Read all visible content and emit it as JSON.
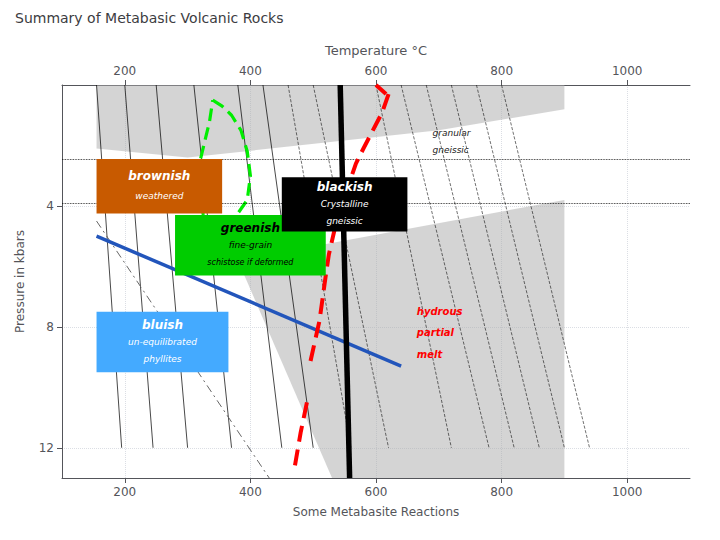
{
  "chart_data": {
    "type": "line",
    "title": "Summary of Metabasic Volcanic Rocks",
    "xlabel": "Some Metabasite Reactions",
    "x2label": "Temperature °C",
    "ylabel": "Pressure in kbars",
    "xlim": [
      100,
      1100
    ],
    "xticks": [
      200,
      400,
      600,
      800,
      1000
    ],
    "ylim": [
      13.0,
      0.0
    ],
    "yticks": [
      4,
      8,
      12
    ],
    "grid": true,
    "series": [
      {
        "type": "area",
        "color": "#aaaaaa",
        "x": [
          155,
          155,
          300,
          700,
          900,
          900,
          440
        ],
        "y": [
          0.0,
          2.1,
          2.4,
          1.5,
          0.8,
          0.0,
          0.0
        ]
      },
      {
        "type": "area",
        "color": "#aaaaaa",
        "x": [
          380,
          900,
          900,
          530,
          380
        ],
        "y": [
          5.8,
          3.8,
          13.0,
          13.0,
          5.8
        ]
      },
      {
        "type": "line",
        "color": "#000000",
        "line_style": "solid",
        "x": [
          155,
          195,
          null,
          200,
          245,
          null,
          250,
          300,
          null,
          310,
          370,
          null,
          380,
          450,
          null,
          420,
          500
        ],
        "y": [
          0.0,
          12.0,
          null,
          0.0,
          12.0,
          null,
          0.0,
          12.0,
          null,
          0.0,
          12.0,
          null,
          0.0,
          12.0,
          null,
          0.0,
          12.0
        ]
      },
      {
        "type": "line",
        "color": "#000000",
        "line_style": "dashed",
        "x": [
          460,
          560,
          null,
          500,
          620,
          null,
          600,
          720,
          null,
          640,
          780,
          null,
          680,
          820,
          null,
          720,
          860,
          null,
          760,
          900,
          null,
          800,
          940
        ],
        "y": [
          0.0,
          12.0,
          null,
          0.0,
          12.0,
          null,
          0.0,
          12.0,
          null,
          0.0,
          12.0,
          null,
          0.0,
          12.0,
          null,
          0.0,
          12.0,
          null,
          0.0,
          12.0,
          null,
          0.0,
          12.0
        ]
      },
      {
        "type": "line",
        "color": "#666666",
        "line_style": "dashdot",
        "x": [
          155,
          430
        ],
        "y": [
          4.5,
          13.0
        ]
      },
      {
        "type": "line",
        "color": "#000000",
        "line_style": "solid",
        "x": [
          543,
          558
        ],
        "y": [
          0.0,
          13.0
        ]
      },
      {
        "type": "line",
        "color": "#2255bb",
        "line_style": "solid",
        "x": [
          155,
          640
        ],
        "y": [
          5.0,
          9.3
        ]
      },
      {
        "type": "line",
        "color": "#00ee00",
        "line_style": "dashed",
        "x": [
          340,
          355,
          370,
          385,
          395,
          400,
          395,
          375,
          345,
          325,
          318,
          320,
          335,
          340
        ],
        "y": [
          0.5,
          0.7,
          1.0,
          1.5,
          2.2,
          3.0,
          3.8,
          4.4,
          4.7,
          4.3,
          3.5,
          2.5,
          1.2,
          0.5
        ]
      },
      {
        "type": "line",
        "color": "#ff0000",
        "line_style": "dashed",
        "x": [
          620,
          610,
          595,
          580,
          568,
          558,
          548,
          535,
          525,
          520,
          510,
          495
        ],
        "y": [
          0.3,
          0.9,
          1.5,
          2.1,
          2.6,
          3.2,
          3.8,
          4.7,
          5.6,
          6.3,
          7.8,
          9.2
        ]
      },
      {
        "type": "line",
        "color": "#ff0000",
        "line_style": "solid",
        "x": [
          600,
          608,
          616
        ],
        "y": [
          0.0,
          0.15,
          0.3
        ]
      },
      {
        "type": "line",
        "color": "#ff0000",
        "line_style": "dashed",
        "x": [
          490,
          480,
          470
        ],
        "y": [
          10.5,
          11.5,
          12.7
        ]
      },
      {
        "type": "hline",
        "color": "#000000",
        "line_style": "dotted",
        "y": [
          2.45,
          3.9
        ]
      }
    ],
    "boxes": [
      {
        "x0": 155,
        "y0": 2.45,
        "x1": 355,
        "y1": 4.25,
        "color": "#c85a00",
        "text_color": "#ffffff",
        "texts": [
          "brownish",
          "weathered"
        ]
      },
      {
        "x0": 280,
        "y0": 4.3,
        "x1": 520,
        "y1": 6.3,
        "color": "#00cc00",
        "text_color": "#000000",
        "texts": [
          "greenish",
          "fine-grain",
          "schistose if deformed"
        ]
      },
      {
        "x0": 450,
        "y0": 3.05,
        "x1": 650,
        "y1": 4.85,
        "color": "#000000",
        "text_color": "#ffffff",
        "texts": [
          "blackish",
          "Crystalline",
          "gneissic"
        ]
      },
      {
        "x0": 155,
        "y0": 7.5,
        "x1": 365,
        "y1": 9.5,
        "color": "#44aaff",
        "text_color": "#ffffff",
        "texts": [
          "bluish",
          "un-equilibrated",
          "phyllites"
        ]
      }
    ],
    "annotations": [
      {
        "text": "granular",
        "x": 690,
        "y": 1.6
      },
      {
        "text": "gneissic",
        "x": 690,
        "y": 2.15
      },
      {
        "text": "hydrous",
        "x": 665,
        "y": 7.5,
        "color": "#ff0000"
      },
      {
        "text": "partial",
        "x": 665,
        "y": 8.2,
        "color": "#ff0000"
      },
      {
        "text": "melt",
        "x": 665,
        "y": 8.9,
        "color": "#ff0000"
      }
    ]
  }
}
